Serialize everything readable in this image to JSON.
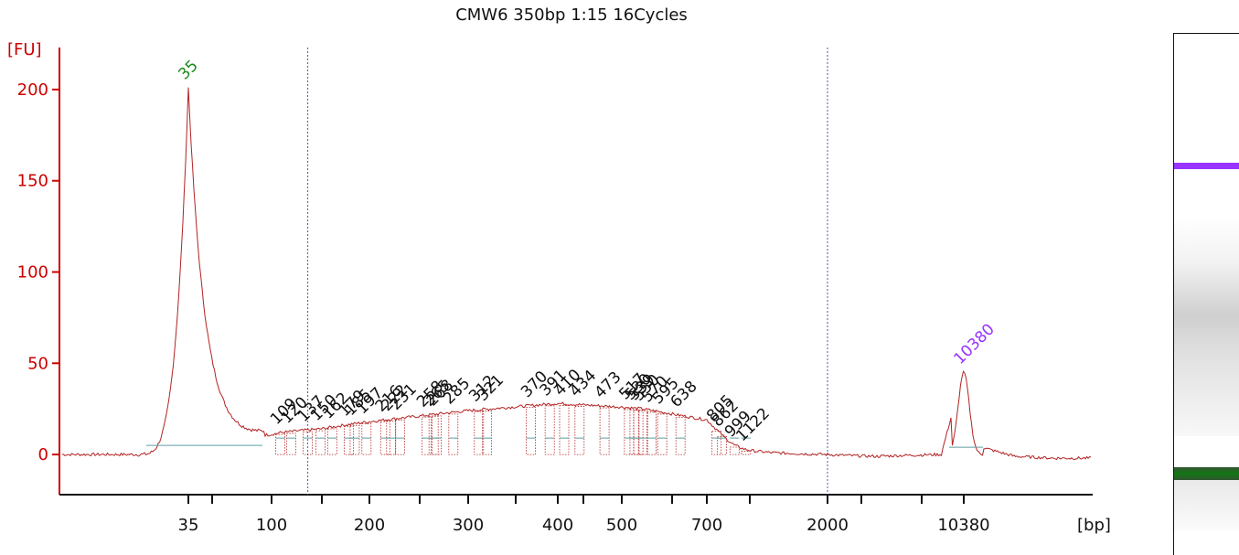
{
  "chart_data": {
    "type": "line",
    "title": "CMW6 350bp 1:15 16Cycles",
    "ylabel": "[FU]",
    "xlabel": "[bp]",
    "ylim": [
      -22,
      223
    ],
    "yticks": [
      0,
      50,
      100,
      150,
      200
    ],
    "xticks": [
      "35",
      "100",
      "200",
      "300",
      "400",
      "500",
      "700",
      "2000",
      "10380"
    ],
    "series": [
      {
        "x": [
          35,
          38,
          60,
          100,
          109,
          150,
          200,
          250,
          300,
          350,
          400,
          450,
          500,
          550,
          600,
          700,
          800,
          900,
          1000,
          1100,
          1200,
          1400,
          2000,
          5000,
          9000,
          10380,
          11000,
          13000,
          15000
        ],
        "values": [
          201,
          150,
          8,
          11,
          12,
          14,
          18,
          21,
          24,
          26,
          28,
          27,
          26,
          25,
          23,
          19,
          14,
          9,
          5,
          3,
          2,
          1,
          0,
          -1,
          0,
          45,
          5,
          -1,
          -2
        ]
      }
    ],
    "peak_labels": [
      {
        "label": "35",
        "color": "#1a8a1a"
      },
      {
        "label": "109",
        "color": "#111111"
      },
      {
        "label": "120",
        "color": "#111111"
      },
      {
        "label": "137",
        "color": "#111111"
      },
      {
        "label": "150",
        "color": "#111111"
      },
      {
        "label": "162",
        "color": "#111111"
      },
      {
        "label": "179",
        "color": "#111111"
      },
      {
        "label": "185",
        "color": "#111111"
      },
      {
        "label": "197",
        "color": "#111111"
      },
      {
        "label": "216",
        "color": "#111111"
      },
      {
        "label": "222",
        "color": "#111111"
      },
      {
        "label": "231",
        "color": "#111111"
      },
      {
        "label": "258",
        "color": "#111111"
      },
      {
        "label": "265",
        "color": "#111111"
      },
      {
        "label": "268",
        "color": "#111111"
      },
      {
        "label": "285",
        "color": "#111111"
      },
      {
        "label": "312",
        "color": "#111111"
      },
      {
        "label": "321",
        "color": "#111111"
      },
      {
        "label": "370",
        "color": "#111111"
      },
      {
        "label": "391",
        "color": "#111111"
      },
      {
        "label": "410",
        "color": "#111111"
      },
      {
        "label": "434",
        "color": "#111111"
      },
      {
        "label": "473",
        "color": "#111111"
      },
      {
        "label": "517",
        "color": "#111111"
      },
      {
        "label": "530",
        "color": "#111111"
      },
      {
        "label": "539",
        "color": "#111111"
      },
      {
        "label": "550",
        "color": "#111111"
      },
      {
        "label": "570",
        "color": "#111111"
      },
      {
        "label": "595",
        "color": "#111111"
      },
      {
        "label": "638",
        "color": "#111111"
      },
      {
        "label": "805",
        "color": "#111111"
      },
      {
        "label": "862",
        "color": "#111111"
      },
      {
        "label": "999",
        "color": "#111111"
      },
      {
        "label": "1122",
        "color": "#111111"
      },
      {
        "label": "10380",
        "color": "#9933ff"
      }
    ],
    "region_markers_bp": [
      137,
      2000
    ],
    "grid": false,
    "colors": {
      "axis": "#cc0000",
      "trace": "#b22222",
      "lower_marker": "#1a8a1a",
      "upper_marker": "#9933ff",
      "region": "#5555aa"
    }
  },
  "gel": {
    "bands": [
      {
        "name": "upper-marker",
        "color": "#9933ff"
      },
      {
        "name": "smear",
        "color": "#c8c8c8"
      },
      {
        "name": "lower-marker",
        "color": "#117711"
      }
    ]
  }
}
